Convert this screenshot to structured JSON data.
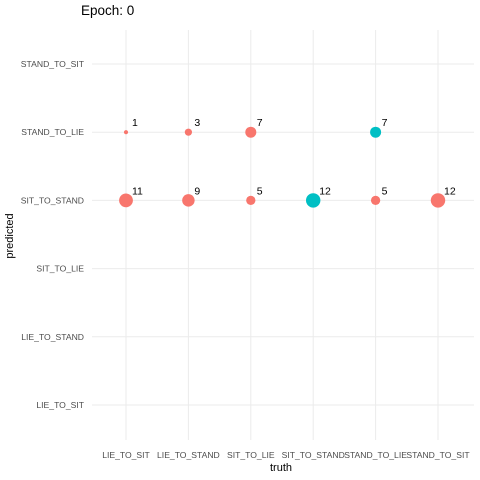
{
  "title_prefix": "Epoch:",
  "title_value": "0",
  "chart_data": {
    "type": "scatter",
    "xlabel": "truth",
    "ylabel": "predicted",
    "x_categories": [
      "LIE_TO_SIT",
      "LIE_TO_STAND",
      "SIT_TO_LIE",
      "SIT_TO_STAND",
      "STAND_TO_LIE",
      "STAND_TO_SIT"
    ],
    "y_categories": [
      "LIE_TO_SIT",
      "LIE_TO_STAND",
      "SIT_TO_LIE",
      "SIT_TO_STAND",
      "STAND_TO_LIE",
      "STAND_TO_SIT"
    ],
    "grid": true,
    "legend": "none",
    "colors": {
      "incorrect": "#F8766D",
      "correct": "#00BFC4"
    },
    "points": [
      {
        "truth": "LIE_TO_SIT",
        "predicted": "STAND_TO_LIE",
        "count": 1,
        "correct": false
      },
      {
        "truth": "LIE_TO_STAND",
        "predicted": "STAND_TO_LIE",
        "count": 3,
        "correct": false
      },
      {
        "truth": "SIT_TO_LIE",
        "predicted": "STAND_TO_LIE",
        "count": 7,
        "correct": false
      },
      {
        "truth": "STAND_TO_LIE",
        "predicted": "STAND_TO_LIE",
        "count": 7,
        "correct": true
      },
      {
        "truth": "LIE_TO_SIT",
        "predicted": "SIT_TO_STAND",
        "count": 11,
        "correct": false
      },
      {
        "truth": "LIE_TO_STAND",
        "predicted": "SIT_TO_STAND",
        "count": 9,
        "correct": false
      },
      {
        "truth": "SIT_TO_LIE",
        "predicted": "SIT_TO_STAND",
        "count": 5,
        "correct": false
      },
      {
        "truth": "SIT_TO_STAND",
        "predicted": "SIT_TO_STAND",
        "count": 12,
        "correct": true
      },
      {
        "truth": "STAND_TO_LIE",
        "predicted": "SIT_TO_STAND",
        "count": 5,
        "correct": false
      },
      {
        "truth": "STAND_TO_SIT",
        "predicted": "SIT_TO_STAND",
        "count": 12,
        "correct": false
      }
    ]
  }
}
